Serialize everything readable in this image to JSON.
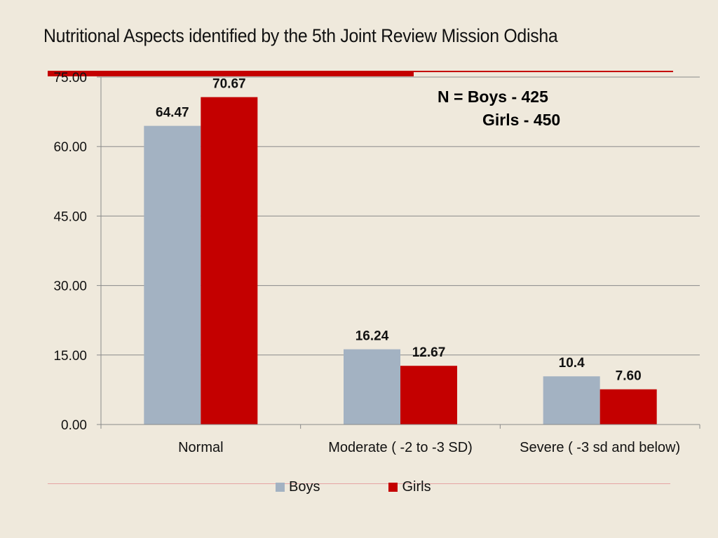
{
  "title": "Nutritional Aspects identified by the 5th Joint Review Mission Odisha",
  "n_box": {
    "line1": "N =  Boys -  425",
    "line2": "Girls -   450"
  },
  "colors": {
    "boys": "#a3b2c2",
    "girls": "#c40000",
    "accent": "#c40000",
    "background": "#efe9dc"
  },
  "chart_data": {
    "type": "bar",
    "categories": [
      "Normal",
      "Moderate ( -2 to -3 SD)",
      "Severe  ( -3 sd and below)"
    ],
    "series": [
      {
        "name": "Boys",
        "values": [
          64.47,
          16.24,
          10.4
        ],
        "labels": [
          "64.47",
          "16.24",
          "10.4"
        ]
      },
      {
        "name": "Girls",
        "values": [
          70.67,
          12.67,
          7.6
        ],
        "labels": [
          "70.67",
          "12.67",
          "7.60"
        ]
      }
    ],
    "ylim": [
      0,
      75
    ],
    "yticks": [
      "0.00",
      "15.00",
      "30.00",
      "45.00",
      "60.00",
      "75.00"
    ],
    "grid": true,
    "legend": "bottom"
  }
}
